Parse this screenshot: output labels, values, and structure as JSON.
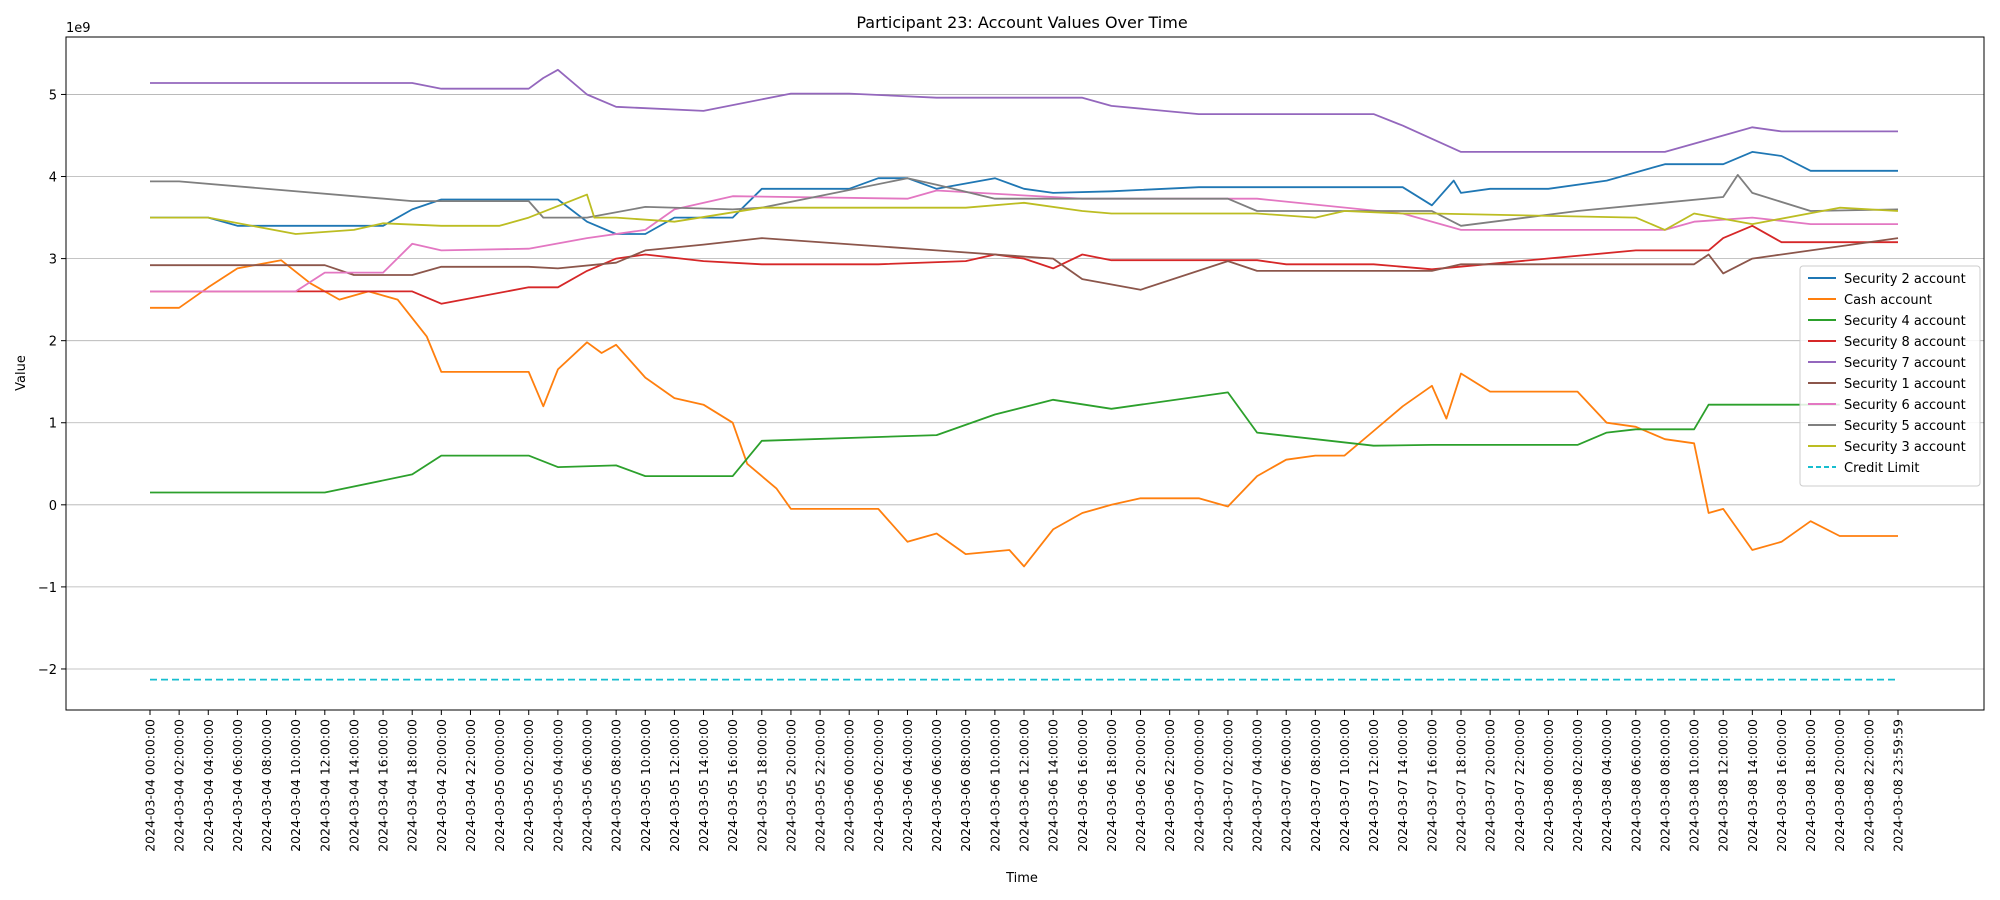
{
  "chart_data": {
    "type": "line",
    "title": "Participant 23: Account Values Over Time",
    "xlabel": "Time",
    "ylabel": "Value",
    "y_offset_label": "1e9",
    "ylim": [
      -2.5,
      5.7
    ],
    "y_ticks": [
      -2,
      -1,
      0,
      1,
      2,
      3,
      4,
      5
    ],
    "y_tick_labels": [
      "−2",
      "−1",
      "0",
      "1",
      "2",
      "3",
      "4",
      "5"
    ],
    "grid": "horizontal",
    "legend_position": "right",
    "x_ticks": [
      "2024-03-04 00:00:00",
      "2024-03-04 02:00:00",
      "2024-03-04 04:00:00",
      "2024-03-04 06:00:00",
      "2024-03-04 08:00:00",
      "2024-03-04 10:00:00",
      "2024-03-04 12:00:00",
      "2024-03-04 14:00:00",
      "2024-03-04 16:00:00",
      "2024-03-04 18:00:00",
      "2024-03-04 20:00:00",
      "2024-03-04 22:00:00",
      "2024-03-05 00:00:00",
      "2024-03-05 02:00:00",
      "2024-03-05 04:00:00",
      "2024-03-05 06:00:00",
      "2024-03-05 08:00:00",
      "2024-03-05 10:00:00",
      "2024-03-05 12:00:00",
      "2024-03-05 14:00:00",
      "2024-03-05 16:00:00",
      "2024-03-05 18:00:00",
      "2024-03-05 20:00:00",
      "2024-03-05 22:00:00",
      "2024-03-06 00:00:00",
      "2024-03-06 02:00:00",
      "2024-03-06 04:00:00",
      "2024-03-06 06:00:00",
      "2024-03-06 08:00:00",
      "2024-03-06 10:00:00",
      "2024-03-06 12:00:00",
      "2024-03-06 14:00:00",
      "2024-03-06 16:00:00",
      "2024-03-06 18:00:00",
      "2024-03-06 20:00:00",
      "2024-03-06 22:00:00",
      "2024-03-07 00:00:00",
      "2024-03-07 02:00:00",
      "2024-03-07 04:00:00",
      "2024-03-07 06:00:00",
      "2024-03-07 08:00:00",
      "2024-03-07 10:00:00",
      "2024-03-07 12:00:00",
      "2024-03-07 14:00:00",
      "2024-03-07 16:00:00",
      "2024-03-07 18:00:00",
      "2024-03-07 20:00:00",
      "2024-03-07 22:00:00",
      "2024-03-08 00:00:00",
      "2024-03-08 02:00:00",
      "2024-03-08 04:00:00",
      "2024-03-08 06:00:00",
      "2024-03-08 08:00:00",
      "2024-03-08 10:00:00",
      "2024-03-08 12:00:00",
      "2024-03-08 14:00:00",
      "2024-03-08 16:00:00",
      "2024-03-08 18:00:00",
      "2024-03-08 20:00:00",
      "2024-03-08 22:00:00",
      "2024-03-08 23:59:59"
    ],
    "series": [
      {
        "name": "Security 2 account",
        "color": "#1f77b4",
        "dash": false,
        "x": [
          "2024-03-04 00:00:00",
          "2024-03-04 04:00:00",
          "2024-03-04 06:00:00",
          "2024-03-04 14:00:00",
          "2024-03-04 16:00:00",
          "2024-03-04 18:00:00",
          "2024-03-04 20:00:00",
          "2024-03-05 00:00:00",
          "2024-03-05 04:00:00",
          "2024-03-05 06:00:00",
          "2024-03-05 08:00:00",
          "2024-03-05 10:00:00",
          "2024-03-05 12:00:00",
          "2024-03-05 16:00:00",
          "2024-03-05 18:00:00",
          "2024-03-06 00:00:00",
          "2024-03-06 02:00:00",
          "2024-03-06 04:00:00",
          "2024-03-06 06:00:00",
          "2024-03-06 10:00:00",
          "2024-03-06 12:00:00",
          "2024-03-06 14:00:00",
          "2024-03-06 18:00:00",
          "2024-03-07 00:00:00",
          "2024-03-07 14:00:00",
          "2024-03-07 16:00:00",
          "2024-03-07 17:30:00",
          "2024-03-07 18:00:00",
          "2024-03-07 20:00:00",
          "2024-03-08 00:00:00",
          "2024-03-08 04:00:00",
          "2024-03-08 08:00:00",
          "2024-03-08 12:00:00",
          "2024-03-08 14:00:00",
          "2024-03-08 16:00:00",
          "2024-03-08 18:00:00",
          "2024-03-08 23:59:59"
        ],
        "y": [
          3.5,
          3.5,
          3.4,
          3.4,
          3.4,
          3.6,
          3.72,
          3.72,
          3.72,
          3.45,
          3.3,
          3.3,
          3.5,
          3.5,
          3.85,
          3.85,
          3.98,
          3.98,
          3.85,
          3.98,
          3.85,
          3.8,
          3.82,
          3.87,
          3.87,
          3.65,
          3.95,
          3.8,
          3.85,
          3.85,
          3.95,
          4.15,
          4.15,
          4.3,
          4.25,
          4.07,
          4.07
        ]
      },
      {
        "name": "Cash account",
        "color": "#ff7f0e",
        "dash": false,
        "x": [
          "2024-03-04 00:00:00",
          "2024-03-04 02:00:00",
          "2024-03-04 04:00:00",
          "2024-03-04 06:00:00",
          "2024-03-04 09:00:00",
          "2024-03-04 11:00:00",
          "2024-03-04 13:00:00",
          "2024-03-04 15:00:00",
          "2024-03-04 17:00:00",
          "2024-03-04 19:00:00",
          "2024-03-04 20:00:00",
          "2024-03-05 02:00:00",
          "2024-03-05 03:00:00",
          "2024-03-05 04:00:00",
          "2024-03-05 06:00:00",
          "2024-03-05 07:00:00",
          "2024-03-05 08:00:00",
          "2024-03-05 10:00:00",
          "2024-03-05 12:00:00",
          "2024-03-05 14:00:00",
          "2024-03-05 16:00:00",
          "2024-03-05 17:00:00",
          "2024-03-05 19:00:00",
          "2024-03-05 20:00:00",
          "2024-03-06 02:00:00",
          "2024-03-06 04:00:00",
          "2024-03-06 06:00:00",
          "2024-03-06 08:00:00",
          "2024-03-06 11:00:00",
          "2024-03-06 12:00:00",
          "2024-03-06 14:00:00",
          "2024-03-06 16:00:00",
          "2024-03-06 18:00:00",
          "2024-03-06 20:00:00",
          "2024-03-07 00:00:00",
          "2024-03-07 02:00:00",
          "2024-03-07 04:00:00",
          "2024-03-07 06:00:00",
          "2024-03-07 08:00:00",
          "2024-03-07 10:00:00",
          "2024-03-07 12:00:00",
          "2024-03-07 14:00:00",
          "2024-03-07 16:00:00",
          "2024-03-07 17:00:00",
          "2024-03-07 18:00:00",
          "2024-03-07 20:00:00",
          "2024-03-08 02:00:00",
          "2024-03-08 04:00:00",
          "2024-03-08 06:00:00",
          "2024-03-08 08:00:00",
          "2024-03-08 10:00:00",
          "2024-03-08 11:00:00",
          "2024-03-08 12:00:00",
          "2024-03-08 14:00:00",
          "2024-03-08 16:00:00",
          "2024-03-08 18:00:00",
          "2024-03-08 20:00:00",
          "2024-03-08 23:59:59"
        ],
        "y": [
          2.4,
          2.4,
          2.65,
          2.88,
          2.98,
          2.7,
          2.5,
          2.6,
          2.5,
          2.05,
          1.62,
          1.62,
          1.2,
          1.65,
          1.98,
          1.85,
          1.95,
          1.55,
          1.3,
          1.22,
          1.0,
          0.5,
          0.2,
          -0.05,
          -0.05,
          -0.45,
          -0.35,
          -0.6,
          -0.55,
          -0.75,
          -0.3,
          -0.1,
          0.0,
          0.08,
          0.08,
          -0.02,
          0.35,
          0.55,
          0.6,
          0.6,
          0.9,
          1.2,
          1.45,
          1.05,
          1.6,
          1.38,
          1.38,
          1.0,
          0.95,
          0.8,
          0.75,
          -0.1,
          -0.05,
          -0.55,
          -0.45,
          -0.2,
          -0.38,
          -0.38
        ]
      },
      {
        "name": "Security 4 account",
        "color": "#2ca02c",
        "dash": false,
        "x": [
          "2024-03-04 00:00:00",
          "2024-03-04 12:00:00",
          "2024-03-04 18:00:00",
          "2024-03-04 20:00:00",
          "2024-03-05 02:00:00",
          "2024-03-05 04:00:00",
          "2024-03-05 08:00:00",
          "2024-03-05 10:00:00",
          "2024-03-05 16:00:00",
          "2024-03-05 18:00:00",
          "2024-03-06 06:00:00",
          "2024-03-06 10:00:00",
          "2024-03-06 14:00:00",
          "2024-03-06 18:00:00",
          "2024-03-07 02:00:00",
          "2024-03-07 04:00:00",
          "2024-03-07 12:00:00",
          "2024-03-07 16:00:00",
          "2024-03-08 02:00:00",
          "2024-03-08 04:00:00",
          "2024-03-08 06:00:00",
          "2024-03-08 10:00:00",
          "2024-03-08 11:00:00",
          "2024-03-08 18:00:00",
          "2024-03-08 20:00:00"
        ],
        "y": [
          0.15,
          0.15,
          0.37,
          0.6,
          0.6,
          0.46,
          0.48,
          0.35,
          0.35,
          0.78,
          0.85,
          1.1,
          1.28,
          1.17,
          1.37,
          0.88,
          0.72,
          0.73,
          0.73,
          0.88,
          0.92,
          0.92,
          1.22,
          1.22,
          1.22
        ]
      },
      {
        "name": "Security 8 account",
        "color": "#d62728",
        "dash": false,
        "x": [
          "2024-03-04 00:00:00",
          "2024-03-04 18:00:00",
          "2024-03-04 20:00:00",
          "2024-03-05 02:00:00",
          "2024-03-05 04:00:00",
          "2024-03-05 06:00:00",
          "2024-03-05 08:00:00",
          "2024-03-05 10:00:00",
          "2024-03-05 14:00:00",
          "2024-03-05 18:00:00",
          "2024-03-06 02:00:00",
          "2024-03-06 08:00:00",
          "2024-03-06 10:00:00",
          "2024-03-06 12:00:00",
          "2024-03-06 14:00:00",
          "2024-03-06 16:00:00",
          "2024-03-06 18:00:00",
          "2024-03-07 04:00:00",
          "2024-03-07 06:00:00",
          "2024-03-07 12:00:00",
          "2024-03-07 16:00:00",
          "2024-03-08 06:00:00",
          "2024-03-08 11:00:00",
          "2024-03-08 12:00:00",
          "2024-03-08 14:00:00",
          "2024-03-08 16:00:00",
          "2024-03-08 23:59:59"
        ],
        "y": [
          2.6,
          2.6,
          2.45,
          2.65,
          2.65,
          2.85,
          3.0,
          3.05,
          2.97,
          2.93,
          2.93,
          2.97,
          3.05,
          3.0,
          2.88,
          3.05,
          2.98,
          2.98,
          2.93,
          2.93,
          2.87,
          3.1,
          3.1,
          3.25,
          3.4,
          3.2,
          3.2
        ]
      },
      {
        "name": "Security 7 account",
        "color": "#9467bd",
        "dash": false,
        "x": [
          "2024-03-04 00:00:00",
          "2024-03-04 18:00:00",
          "2024-03-04 20:00:00",
          "2024-03-05 02:00:00",
          "2024-03-05 03:00:00",
          "2024-03-05 04:00:00",
          "2024-03-05 06:00:00",
          "2024-03-05 08:00:00",
          "2024-03-05 14:00:00",
          "2024-03-05 20:00:00",
          "2024-03-06 00:00:00",
          "2024-03-06 06:00:00",
          "2024-03-06 16:00:00",
          "2024-03-06 18:00:00",
          "2024-03-07 00:00:00",
          "2024-03-07 12:00:00",
          "2024-03-07 14:00:00",
          "2024-03-07 18:00:00",
          "2024-03-08 08:00:00",
          "2024-03-08 12:00:00",
          "2024-03-08 14:00:00",
          "2024-03-08 16:00:00",
          "2024-03-08 23:59:59"
        ],
        "y": [
          5.14,
          5.14,
          5.07,
          5.07,
          5.2,
          5.3,
          5.0,
          4.85,
          4.8,
          5.01,
          5.01,
          4.96,
          4.96,
          4.86,
          4.76,
          4.76,
          4.62,
          4.3,
          4.3,
          4.5,
          4.6,
          4.55,
          4.55
        ]
      },
      {
        "name": "Security 1 account",
        "color": "#8c564b",
        "dash": false,
        "x": [
          "2024-03-04 00:00:00",
          "2024-03-04 12:00:00",
          "2024-03-04 14:00:00",
          "2024-03-04 18:00:00",
          "2024-03-04 20:00:00",
          "2024-03-05 02:00:00",
          "2024-03-05 04:00:00",
          "2024-03-05 08:00:00",
          "2024-03-05 10:00:00",
          "2024-03-05 14:00:00",
          "2024-03-05 18:00:00",
          "2024-03-06 06:00:00",
          "2024-03-06 14:00:00",
          "2024-03-06 16:00:00",
          "2024-03-06 20:00:00",
          "2024-03-07 02:00:00",
          "2024-03-07 04:00:00",
          "2024-03-07 06:00:00",
          "2024-03-07 16:00:00",
          "2024-03-07 18:00:00",
          "2024-03-08 10:00:00",
          "2024-03-08 11:00:00",
          "2024-03-08 12:00:00",
          "2024-03-08 14:00:00",
          "2024-03-08 23:59:59"
        ],
        "y": [
          2.92,
          2.92,
          2.8,
          2.8,
          2.9,
          2.9,
          2.88,
          2.95,
          3.1,
          3.17,
          3.25,
          3.1,
          3.0,
          2.75,
          2.62,
          2.97,
          2.85,
          2.85,
          2.85,
          2.93,
          2.93,
          3.05,
          2.82,
          3.0,
          3.25
        ]
      },
      {
        "name": "Security 6 account",
        "color": "#e377c2",
        "dash": false,
        "x": [
          "2024-03-04 00:00:00",
          "2024-03-04 10:00:00",
          "2024-03-04 12:00:00",
          "2024-03-04 16:00:00",
          "2024-03-04 18:00:00",
          "2024-03-04 20:00:00",
          "2024-03-05 02:00:00",
          "2024-03-05 06:00:00",
          "2024-03-05 10:00:00",
          "2024-03-05 12:00:00",
          "2024-03-05 16:00:00",
          "2024-03-06 04:00:00",
          "2024-03-06 06:00:00",
          "2024-03-06 16:00:00",
          "2024-03-06 18:00:00",
          "2024-03-07 04:00:00",
          "2024-03-07 14:00:00",
          "2024-03-07 18:00:00",
          "2024-03-08 08:00:00",
          "2024-03-08 10:00:00",
          "2024-03-08 14:00:00",
          "2024-03-08 18:00:00",
          "2024-03-08 23:59:59"
        ],
        "y": [
          2.6,
          2.6,
          2.83,
          2.83,
          3.18,
          3.1,
          3.12,
          3.25,
          3.35,
          3.6,
          3.76,
          3.73,
          3.83,
          3.73,
          3.73,
          3.73,
          3.55,
          3.35,
          3.35,
          3.45,
          3.5,
          3.42,
          3.42
        ]
      },
      {
        "name": "Security 5 account",
        "color": "#7f7f7f",
        "dash": false,
        "x": [
          "2024-03-04 00:00:00",
          "2024-03-04 02:00:00",
          "2024-03-04 18:00:00",
          "2024-03-05 02:00:00",
          "2024-03-05 03:00:00",
          "2024-03-05 06:00:00",
          "2024-03-05 10:00:00",
          "2024-03-05 16:00:00",
          "2024-03-05 18:00:00",
          "2024-03-06 04:00:00",
          "2024-03-06 06:00:00",
          "2024-03-06 10:00:00",
          "2024-03-07 02:00:00",
          "2024-03-07 04:00:00",
          "2024-03-07 16:00:00",
          "2024-03-07 18:00:00",
          "2024-03-08 02:00:00",
          "2024-03-08 12:00:00",
          "2024-03-08 13:00:00",
          "2024-03-08 14:00:00",
          "2024-03-08 18:00:00",
          "2024-03-08 23:59:59"
        ],
        "y": [
          3.94,
          3.94,
          3.7,
          3.7,
          3.5,
          3.5,
          3.63,
          3.6,
          3.62,
          3.98,
          3.9,
          3.73,
          3.73,
          3.58,
          3.58,
          3.4,
          3.58,
          3.75,
          4.02,
          3.8,
          3.58,
          3.6
        ]
      },
      {
        "name": "Security 3 account",
        "color": "#bcbd22",
        "dash": false,
        "x": [
          "2024-03-04 00:00:00",
          "2024-03-04 04:00:00",
          "2024-03-04 10:00:00",
          "2024-03-04 14:00:00",
          "2024-03-04 16:00:00",
          "2024-03-04 20:00:00",
          "2024-03-05 00:00:00",
          "2024-03-05 02:00:00",
          "2024-03-05 06:00:00",
          "2024-03-05 06:30:00",
          "2024-03-05 08:00:00",
          "2024-03-05 12:00:00",
          "2024-03-05 18:00:00",
          "2024-03-06 08:00:00",
          "2024-03-06 12:00:00",
          "2024-03-06 16:00:00",
          "2024-03-06 18:00:00",
          "2024-03-07 04:00:00",
          "2024-03-07 08:00:00",
          "2024-03-07 10:00:00",
          "2024-03-07 14:00:00",
          "2024-03-07 16:00:00",
          "2024-03-08 06:00:00",
          "2024-03-08 08:00:00",
          "2024-03-08 10:00:00",
          "2024-03-08 14:00:00",
          "2024-03-08 20:00:00",
          "2024-03-08 23:59:59"
        ],
        "y": [
          3.5,
          3.5,
          3.3,
          3.35,
          3.43,
          3.4,
          3.4,
          3.5,
          3.78,
          3.5,
          3.5,
          3.45,
          3.62,
          3.62,
          3.68,
          3.58,
          3.55,
          3.55,
          3.5,
          3.58,
          3.55,
          3.55,
          3.5,
          3.35,
          3.55,
          3.42,
          3.62,
          3.58
        ]
      },
      {
        "name": "Credit Limit",
        "color": "#17becf",
        "dash": true,
        "x": [
          "2024-03-04 00:00:00",
          "2024-03-08 23:59:59"
        ],
        "y": [
          -2.13,
          -2.13
        ]
      }
    ]
  }
}
